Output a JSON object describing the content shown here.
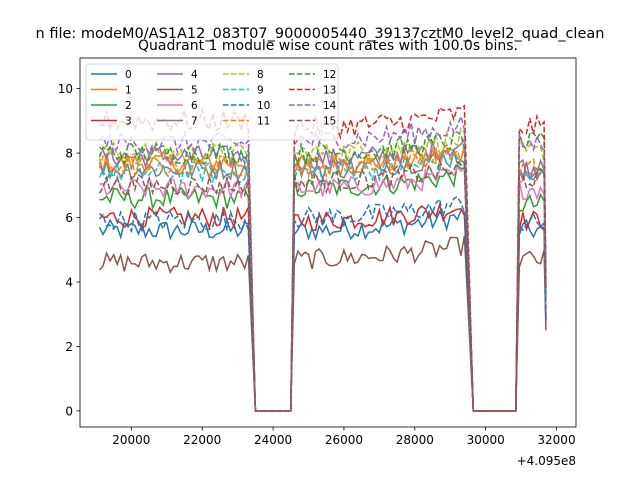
{
  "suptitle": "n file: modeM0/AS1A12_083T07_9000005440_39137cztM0_level2_quad_clean",
  "chart_data": {
    "type": "line",
    "title": "Quadrant 1 module wise count rates with 100.0s bins.",
    "xlabel": "",
    "ylabel": "",
    "x_offset_label": "+4.095e8",
    "xlim": [
      18550,
      32550
    ],
    "ylim": [
      -0.5,
      10.95
    ],
    "xticks": [
      20000,
      22000,
      24000,
      26000,
      28000,
      30000,
      32000
    ],
    "xtick_labels": [
      "20000",
      "22000",
      "24000",
      "26000",
      "28000",
      "30000",
      "32000"
    ],
    "yticks": [
      0,
      2,
      4,
      6,
      8,
      10
    ],
    "ytick_labels": [
      "0",
      "2",
      "4",
      "6",
      "8",
      "10"
    ],
    "legend_position": "upper-left",
    "segments": [
      {
        "start": 19100,
        "end": 23300,
        "drop_end": 23500
      },
      {
        "start": 24600,
        "end": 29450,
        "drop_end": 29650
      },
      {
        "start": 30950,
        "end": 31700,
        "drop_end": 31700
      }
    ],
    "series": [
      {
        "name": "0",
        "color": "#1f77b4",
        "dash": "solid",
        "segment_means": [
          5.6,
          5.6,
          5.6
        ]
      },
      {
        "name": "1",
        "color": "#ff7f0e",
        "dash": "solid",
        "segment_means": [
          7.7,
          7.6,
          7.4
        ]
      },
      {
        "name": "2",
        "color": "#2ca02c",
        "dash": "solid",
        "segment_means": [
          6.6,
          6.9,
          6.4
        ]
      },
      {
        "name": "3",
        "color": "#d62728",
        "dash": "solid",
        "segment_means": [
          6.0,
          5.9,
          5.9
        ]
      },
      {
        "name": "4",
        "color": "#9467bd",
        "dash": "solid",
        "segment_means": [
          7.9,
          7.8,
          7.5
        ]
      },
      {
        "name": "5",
        "color": "#8c564b",
        "dash": "solid",
        "segment_means": [
          4.6,
          4.7,
          4.7
        ]
      },
      {
        "name": "6",
        "color": "#e377c2",
        "dash": "solid",
        "segment_means": [
          6.9,
          6.9,
          6.9
        ]
      },
      {
        "name": "7",
        "color": "#7f7f7f",
        "dash": "solid",
        "segment_means": [
          7.5,
          7.5,
          7.5
        ]
      },
      {
        "name": "8",
        "color": "#bcbd22",
        "dash": "dashed",
        "segment_means": [
          8.0,
          8.0,
          8.0
        ]
      },
      {
        "name": "9",
        "color": "#17becf",
        "dash": "dashed",
        "segment_means": [
          7.4,
          7.4,
          7.3
        ]
      },
      {
        "name": "10",
        "color": "#1f77b4",
        "dash": "dashed",
        "segment_means": [
          5.9,
          6.0,
          5.8
        ]
      },
      {
        "name": "11",
        "color": "#ff7f0e",
        "dash": "dashed",
        "segment_means": [
          7.6,
          7.6,
          7.5
        ]
      },
      {
        "name": "12",
        "color": "#2ca02c",
        "dash": "dashed",
        "segment_means": [
          8.0,
          8.0,
          8.3
        ]
      },
      {
        "name": "13",
        "color": "#d62728",
        "dash": "dashed",
        "segment_means": [
          9.0,
          8.8,
          8.8
        ]
      },
      {
        "name": "14",
        "color": "#9467bd",
        "dash": "dashed",
        "segment_means": [
          8.3,
          8.4,
          8.3
        ]
      },
      {
        "name": "15",
        "color": "#8c564b",
        "dash": "dashed",
        "segment_means": [
          7.0,
          7.1,
          7.2
        ]
      }
    ]
  }
}
